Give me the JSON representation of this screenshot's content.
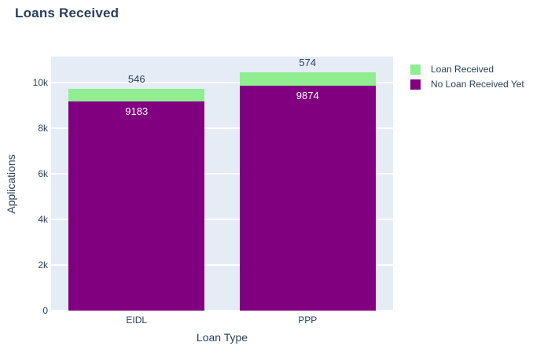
{
  "title": "Loans Received",
  "colors": {
    "text": "#2a3f5f",
    "plot_background": "#e5ecf6",
    "gridline": "#ffffff",
    "loan_received": "#90ee90",
    "no_loan_received": "#800080",
    "inside_label": "#ffffff"
  },
  "chart_data": {
    "type": "bar",
    "stacked": true,
    "title": "Loans Received",
    "xlabel": "Loan Type",
    "ylabel": "Applications",
    "categories": [
      "EIDL",
      "PPP"
    ],
    "series": [
      {
        "name": "No Loan Received Yet",
        "color": "#800080",
        "values": [
          9183,
          9874
        ],
        "label_position": "inside",
        "label_color": "#ffffff"
      },
      {
        "name": "Loan Received",
        "color": "#90ee90",
        "values": [
          546,
          574
        ],
        "label_position": "outside",
        "label_color": "#2a3f5f"
      }
    ],
    "stack_totals": [
      9729,
      10448
    ],
    "ylim": [
      0,
      11140
    ],
    "yticks": [
      0,
      2000,
      4000,
      6000,
      8000,
      10000
    ],
    "ytick_labels": [
      "0",
      "2k",
      "4k",
      "6k",
      "8k",
      "10k"
    ],
    "grid": true,
    "legend": {
      "position": "top-right",
      "items": [
        "Loan Received",
        "No Loan Received Yet"
      ]
    }
  }
}
